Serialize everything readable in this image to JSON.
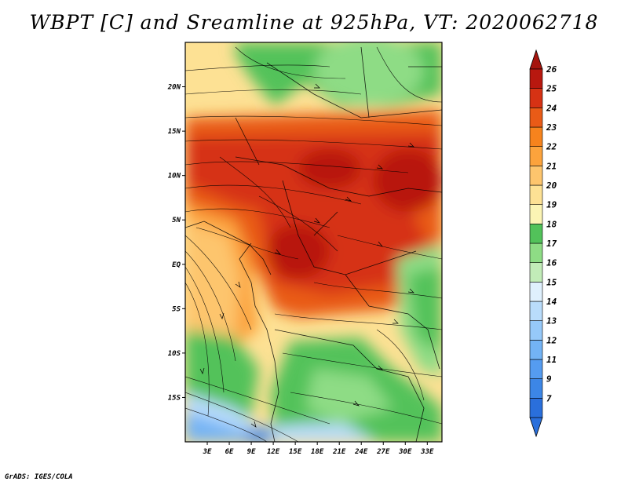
{
  "title": "WBPT [C] and Sreamline at 925hPa, VT: 2020062718",
  "credit": "GrADS: IGES/COLA",
  "map": {
    "lon_range": [
      0,
      35
    ],
    "lat_range": [
      -20,
      25
    ],
    "x_ticks": [
      {
        "value": 3,
        "label": "3E"
      },
      {
        "value": 6,
        "label": "6E"
      },
      {
        "value": 9,
        "label": "9E"
      },
      {
        "value": 12,
        "label": "12E"
      },
      {
        "value": 15,
        "label": "15E"
      },
      {
        "value": 18,
        "label": "18E"
      },
      {
        "value": 21,
        "label": "21E"
      },
      {
        "value": 24,
        "label": "24E"
      },
      {
        "value": 27,
        "label": "27E"
      },
      {
        "value": 30,
        "label": "30E"
      },
      {
        "value": 33,
        "label": "33E"
      }
    ],
    "y_ticks": [
      {
        "value": 20,
        "label": "20N"
      },
      {
        "value": 15,
        "label": "15N"
      },
      {
        "value": 10,
        "label": "10N"
      },
      {
        "value": 5,
        "label": "5N"
      },
      {
        "value": 0,
        "label": "EQ"
      },
      {
        "value": -5,
        "label": "5S"
      },
      {
        "value": -10,
        "label": "10S"
      },
      {
        "value": -15,
        "label": "15S"
      }
    ]
  },
  "colorbar": {
    "levels": [
      {
        "label": "7",
        "color": "#2a6fdb"
      },
      {
        "label": "9",
        "color": "#3c86e6"
      },
      {
        "label": "11",
        "color": "#559cf0"
      },
      {
        "label": "12",
        "color": "#73b3f5"
      },
      {
        "label": "13",
        "color": "#96c9f9"
      },
      {
        "label": "14",
        "color": "#b9dcfb"
      },
      {
        "label": "15",
        "color": "#dff0fd"
      },
      {
        "label": "16",
        "color": "#c2ecb8"
      },
      {
        "label": "17",
        "color": "#8edc85"
      },
      {
        "label": "18",
        "color": "#52c25a"
      },
      {
        "label": "19",
        "color": "#fbf4b4"
      },
      {
        "label": "20",
        "color": "#fde194"
      },
      {
        "label": "21",
        "color": "#fdc56d"
      },
      {
        "label": "22",
        "color": "#fca33c"
      },
      {
        "label": "23",
        "color": "#f6831d"
      },
      {
        "label": "24",
        "color": "#e95b17"
      },
      {
        "label": "25",
        "color": "#d63214"
      },
      {
        "label": "26",
        "color": "#b8180f"
      }
    ],
    "under_color": "#2a6fdb",
    "over_color": "#a5140d"
  }
}
